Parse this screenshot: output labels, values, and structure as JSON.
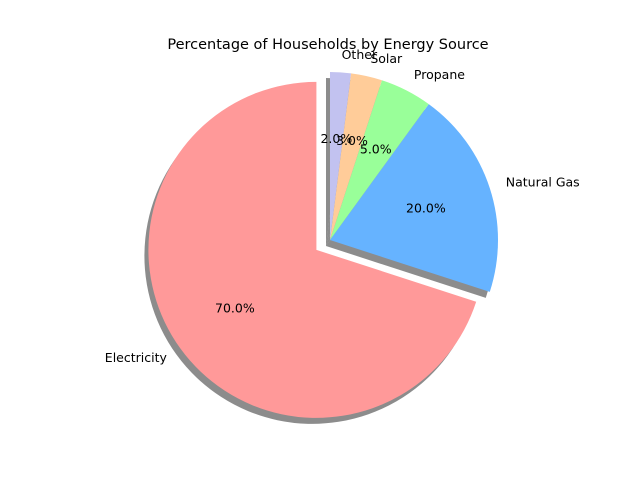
{
  "chart_data": {
    "type": "pie",
    "title": "Percentage of Households by Energy Source",
    "categories": [
      "Electricity",
      "Natural Gas",
      "Propane",
      "Solar",
      "Other"
    ],
    "values": [
      70,
      20,
      5,
      3,
      2
    ],
    "value_labels": [
      "70.0%",
      "20.0%",
      "5.0%",
      "3.0%",
      "2.0%"
    ],
    "colors": [
      "#ff9999",
      "#66b3ff",
      "#99ff99",
      "#ffcc99",
      "#c2c2f0"
    ],
    "exploded": [
      "Electricity"
    ],
    "shadow": true,
    "start_angle_deg": 90,
    "direction": "counterclockwise"
  }
}
